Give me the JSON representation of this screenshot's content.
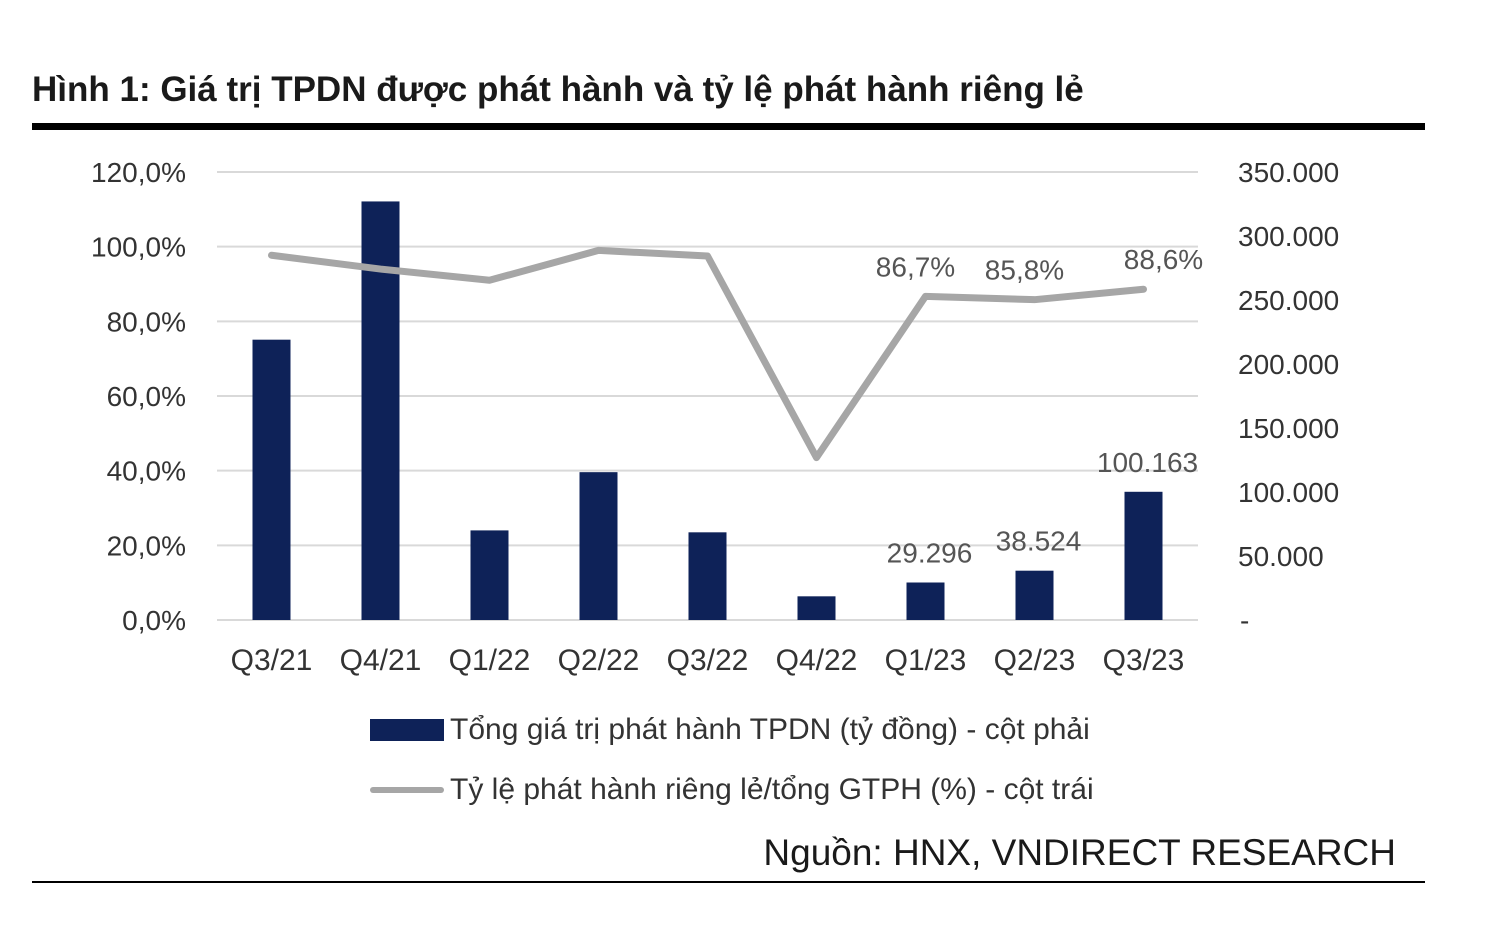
{
  "title": "Hình 1: Giá trị TPDN được phát hành và tỷ lệ phát hành riêng lẻ",
  "source": "Nguồn: HNX, VNDIRECT RESEARCH",
  "colors": {
    "bar": "#0e2258",
    "line": "#a6a6a6",
    "grid": "#d9d9d9"
  },
  "chart_data": {
    "type": "bar",
    "categories": [
      "Q3/21",
      "Q4/21",
      "Q1/22",
      "Q2/22",
      "Q3/22",
      "Q4/22",
      "Q1/23",
      "Q2/23",
      "Q3/23"
    ],
    "series": [
      {
        "name": "Tổng giá trị phát hành TPDN (tỷ đồng) - cột phải",
        "type": "bar",
        "axis": "right",
        "values": [
          219000,
          327000,
          70000,
          115500,
          68500,
          18500,
          29296,
          38524,
          100163
        ],
        "data_labels": [
          "",
          "",
          "",
          "",
          "",
          "",
          "29.296",
          "38.524",
          "100.163"
        ]
      },
      {
        "name": "Tỷ lệ phát hành riêng lẻ/tổng GTPH (%) - cột trái",
        "type": "line",
        "axis": "left",
        "values": [
          97.7,
          94.0,
          91.0,
          99.0,
          97.5,
          43.5,
          86.7,
          85.8,
          88.6
        ],
        "data_labels": [
          "",
          "",
          "",
          "",
          "",
          "",
          "86,7%",
          "85,8%",
          "88,6%"
        ]
      }
    ],
    "left_axis": {
      "ylim": [
        0,
        120
      ],
      "ticks": [
        0,
        20,
        40,
        60,
        80,
        100,
        120
      ],
      "tick_labels": [
        "0,0%",
        "20,0%",
        "40,0%",
        "60,0%",
        "80,0%",
        "100,0%",
        "120,0%"
      ]
    },
    "right_axis": {
      "ylim": [
        0,
        350000
      ],
      "ticks": [
        0,
        50000,
        100000,
        150000,
        200000,
        250000,
        300000,
        350000
      ],
      "tick_labels": [
        "-",
        "50.000",
        "100.000",
        "150.000",
        "200.000",
        "250.000",
        "300.000",
        "350.000"
      ]
    },
    "grid": true,
    "legend_position": "bottom"
  }
}
